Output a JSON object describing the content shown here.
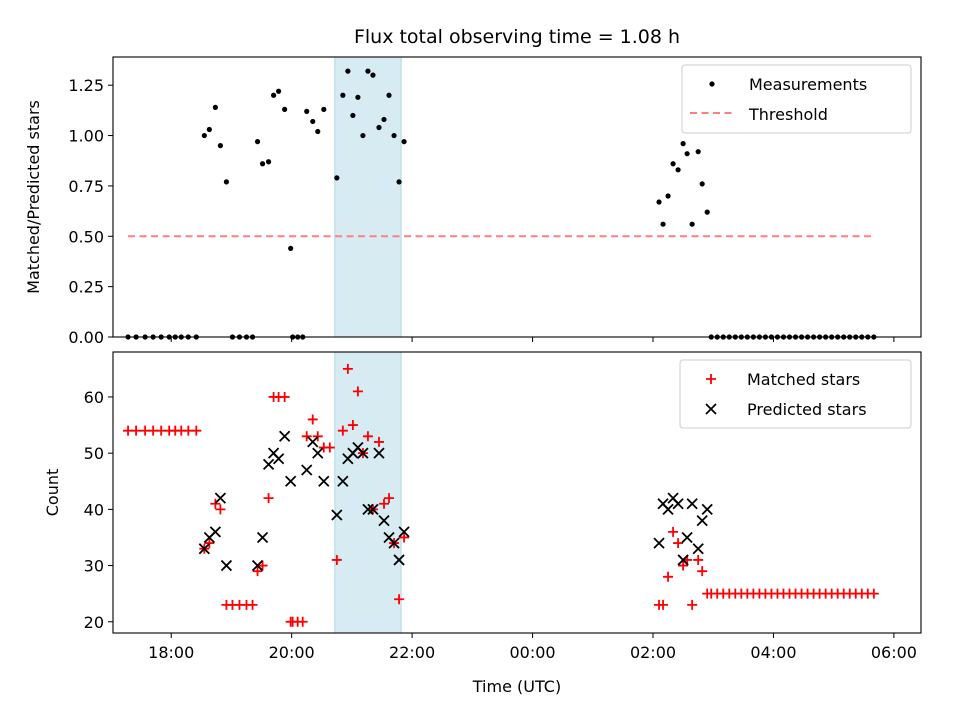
{
  "chart_data": [
    {
      "type": "scatter",
      "title": "Flux total observing time = 1.08 h",
      "ylabel": "Matched/Predicted stars",
      "xlabel": "",
      "xlim": [
        "17:02",
        "06:27"
      ],
      "ylim": [
        0,
        1.39
      ],
      "yticks": [
        0.0,
        0.25,
        0.5,
        0.75,
        1.0,
        1.25
      ],
      "ytick_labels": [
        "0.00",
        "0.25",
        "0.50",
        "0.75",
        "1.00",
        "1.25"
      ],
      "legend_position": "top-right",
      "shaded_interval": [
        "20:43",
        "21:49"
      ],
      "series": [
        {
          "name": "Measurements",
          "marker": "dot",
          "color": "#000000",
          "points": [
            [
              "17:17",
              0
            ],
            [
              "17:25",
              0
            ],
            [
              "17:34",
              0
            ],
            [
              "17:42",
              0
            ],
            [
              "17:50",
              0
            ],
            [
              "17:58",
              0
            ],
            [
              "18:04",
              0
            ],
            [
              "18:10",
              0
            ],
            [
              "18:17",
              0
            ],
            [
              "18:25",
              0
            ],
            [
              "18:33",
              1.0
            ],
            [
              "18:38",
              1.03
            ],
            [
              "18:44",
              1.14
            ],
            [
              "18:49",
              0.95
            ],
            [
              "18:55",
              0.77
            ],
            [
              "19:01",
              0
            ],
            [
              "19:08",
              0
            ],
            [
              "19:15",
              0
            ],
            [
              "19:21",
              0
            ],
            [
              "19:26",
              0.97
            ],
            [
              "19:31",
              0.86
            ],
            [
              "19:37",
              0.87
            ],
            [
              "19:42",
              1.2
            ],
            [
              "19:47",
              1.22
            ],
            [
              "19:53",
              1.13
            ],
            [
              "19:59",
              0.44
            ],
            [
              "20:01",
              0
            ],
            [
              "20:06",
              0
            ],
            [
              "20:11",
              0
            ],
            [
              "20:15",
              1.12
            ],
            [
              "20:21",
              1.07
            ],
            [
              "20:26",
              1.02
            ],
            [
              "20:32",
              1.13
            ],
            [
              "20:45",
              0.79
            ],
            [
              "20:51",
              1.2
            ],
            [
              "20:56",
              1.32
            ],
            [
              "21:01",
              1.1
            ],
            [
              "21:06",
              1.19
            ],
            [
              "21:11",
              1.0
            ],
            [
              "21:16",
              1.32
            ],
            [
              "21:21",
              1.3
            ],
            [
              "21:27",
              1.04
            ],
            [
              "21:32",
              1.08
            ],
            [
              "21:37",
              1.2
            ],
            [
              "21:42",
              1.0
            ],
            [
              "21:47",
              0.77
            ],
            [
              "21:52",
              0.97
            ],
            [
              "02:06",
              0.67
            ],
            [
              "02:10",
              0.56
            ],
            [
              "02:15",
              0.7
            ],
            [
              "02:20",
              0.86
            ],
            [
              "02:25",
              0.83
            ],
            [
              "02:30",
              0.96
            ],
            [
              "02:34",
              0.91
            ],
            [
              "02:39",
              0.56
            ],
            [
              "02:45",
              0.92
            ],
            [
              "02:49",
              0.76
            ],
            [
              "02:54",
              0.62
            ],
            [
              "02:58",
              0
            ],
            [
              "03:04",
              0
            ],
            [
              "03:10",
              0
            ],
            [
              "03:16",
              0
            ],
            [
              "03:22",
              0
            ],
            [
              "03:28",
              0
            ],
            [
              "03:34",
              0
            ],
            [
              "03:40",
              0
            ],
            [
              "03:46",
              0
            ],
            [
              "03:52",
              0
            ],
            [
              "03:58",
              0
            ],
            [
              "04:04",
              0
            ],
            [
              "04:10",
              0
            ],
            [
              "04:16",
              0
            ],
            [
              "04:22",
              0
            ],
            [
              "04:28",
              0
            ],
            [
              "04:34",
              0
            ],
            [
              "04:40",
              0
            ],
            [
              "04:46",
              0
            ],
            [
              "04:52",
              0
            ],
            [
              "04:58",
              0
            ],
            [
              "05:04",
              0
            ],
            [
              "05:10",
              0
            ],
            [
              "05:16",
              0
            ],
            [
              "05:22",
              0
            ],
            [
              "05:28",
              0
            ],
            [
              "05:34",
              0
            ],
            [
              "05:40",
              0
            ]
          ]
        },
        {
          "name": "Threshold",
          "marker": "dashed-line",
          "color": "#ff7f7f",
          "points": [
            [
              "17:17",
              0.5
            ],
            [
              "05:40",
              0.5
            ]
          ]
        }
      ]
    },
    {
      "type": "scatter",
      "title": "",
      "ylabel": "Count",
      "xlabel": "Time (UTC)",
      "xlim": [
        "17:02",
        "06:27"
      ],
      "ylim": [
        18,
        68
      ],
      "yticks": [
        20,
        30,
        40,
        50,
        60
      ],
      "ytick_labels": [
        "20",
        "30",
        "40",
        "50",
        "60"
      ],
      "xticks": [
        "18:00",
        "20:00",
        "22:00",
        "00:00",
        "02:00",
        "04:00",
        "06:00"
      ],
      "legend_position": "top-right",
      "shaded_interval": [
        "20:43",
        "21:49"
      ],
      "series": [
        {
          "name": "Matched stars",
          "marker": "plus",
          "color": "#ff0000",
          "points": [
            [
              "17:17",
              54
            ],
            [
              "17:25",
              54
            ],
            [
              "17:34",
              54
            ],
            [
              "17:42",
              54
            ],
            [
              "17:50",
              54
            ],
            [
              "17:58",
              54
            ],
            [
              "18:04",
              54
            ],
            [
              "18:10",
              54
            ],
            [
              "18:17",
              54
            ],
            [
              "18:25",
              54
            ],
            [
              "18:33",
              33
            ],
            [
              "18:38",
              34
            ],
            [
              "18:44",
              41
            ],
            [
              "18:49",
              40
            ],
            [
              "18:55",
              23
            ],
            [
              "19:01",
              23
            ],
            [
              "19:08",
              23
            ],
            [
              "19:15",
              23
            ],
            [
              "19:21",
              23
            ],
            [
              "19:26",
              29
            ],
            [
              "19:31",
              30
            ],
            [
              "19:37",
              42
            ],
            [
              "19:42",
              60
            ],
            [
              "19:47",
              60
            ],
            [
              "19:53",
              60
            ],
            [
              "19:59",
              20
            ],
            [
              "20:01",
              20
            ],
            [
              "20:06",
              20
            ],
            [
              "20:11",
              20
            ],
            [
              "20:15",
              53
            ],
            [
              "20:21",
              56
            ],
            [
              "20:26",
              53
            ],
            [
              "20:32",
              51
            ],
            [
              "20:38",
              51
            ],
            [
              "20:45",
              31
            ],
            [
              "20:51",
              54
            ],
            [
              "20:56",
              65
            ],
            [
              "21:01",
              55
            ],
            [
              "21:06",
              61
            ],
            [
              "21:11",
              50
            ],
            [
              "21:16",
              53
            ],
            [
              "21:21",
              40
            ],
            [
              "21:27",
              52
            ],
            [
              "21:32",
              41
            ],
            [
              "21:37",
              42
            ],
            [
              "21:42",
              34
            ],
            [
              "21:47",
              24
            ],
            [
              "21:52",
              35
            ],
            [
              "02:06",
              23
            ],
            [
              "02:10",
              23
            ],
            [
              "02:15",
              28
            ],
            [
              "02:20",
              36
            ],
            [
              "02:25",
              34
            ],
            [
              "02:30",
              30
            ],
            [
              "02:34",
              31
            ],
            [
              "02:39",
              23
            ],
            [
              "02:45",
              31
            ],
            [
              "02:49",
              29
            ],
            [
              "02:54",
              25
            ],
            [
              "02:58",
              25
            ],
            [
              "03:04",
              25
            ],
            [
              "03:10",
              25
            ],
            [
              "03:16",
              25
            ],
            [
              "03:22",
              25
            ],
            [
              "03:28",
              25
            ],
            [
              "03:34",
              25
            ],
            [
              "03:40",
              25
            ],
            [
              "03:46",
              25
            ],
            [
              "03:52",
              25
            ],
            [
              "03:58",
              25
            ],
            [
              "04:04",
              25
            ],
            [
              "04:10",
              25
            ],
            [
              "04:16",
              25
            ],
            [
              "04:22",
              25
            ],
            [
              "04:28",
              25
            ],
            [
              "04:34",
              25
            ],
            [
              "04:40",
              25
            ],
            [
              "04:46",
              25
            ],
            [
              "04:52",
              25
            ],
            [
              "04:58",
              25
            ],
            [
              "05:04",
              25
            ],
            [
              "05:10",
              25
            ],
            [
              "05:16",
              25
            ],
            [
              "05:22",
              25
            ],
            [
              "05:28",
              25
            ],
            [
              "05:34",
              25
            ],
            [
              "05:40",
              25
            ]
          ]
        },
        {
          "name": "Predicted stars",
          "marker": "x",
          "color": "#000000",
          "points": [
            [
              "18:33",
              33
            ],
            [
              "18:38",
              35
            ],
            [
              "18:44",
              36
            ],
            [
              "18:49",
              42
            ],
            [
              "18:55",
              30
            ],
            [
              "19:26",
              30
            ],
            [
              "19:31",
              35
            ],
            [
              "19:37",
              48
            ],
            [
              "19:42",
              50
            ],
            [
              "19:47",
              49
            ],
            [
              "19:53",
              53
            ],
            [
              "19:59",
              45
            ],
            [
              "20:15",
              47
            ],
            [
              "20:21",
              52
            ],
            [
              "20:26",
              50
            ],
            [
              "20:32",
              45
            ],
            [
              "20:45",
              39
            ],
            [
              "20:51",
              45
            ],
            [
              "20:56",
              49
            ],
            [
              "21:01",
              50
            ],
            [
              "21:06",
              51
            ],
            [
              "21:11",
              50
            ],
            [
              "21:16",
              40
            ],
            [
              "21:21",
              40
            ],
            [
              "21:27",
              50
            ],
            [
              "21:32",
              38
            ],
            [
              "21:37",
              35
            ],
            [
              "21:42",
              34
            ],
            [
              "21:47",
              31
            ],
            [
              "21:52",
              36
            ],
            [
              "02:06",
              34
            ],
            [
              "02:10",
              41
            ],
            [
              "02:15",
              40
            ],
            [
              "02:20",
              42
            ],
            [
              "02:25",
              41
            ],
            [
              "02:30",
              31
            ],
            [
              "02:34",
              35
            ],
            [
              "02:39",
              41
            ],
            [
              "02:45",
              33
            ],
            [
              "02:49",
              38
            ],
            [
              "02:54",
              40
            ]
          ]
        }
      ]
    }
  ]
}
